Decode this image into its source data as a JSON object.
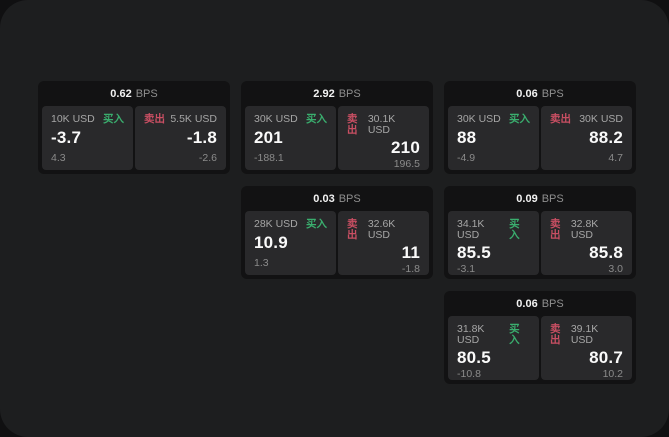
{
  "labels": {
    "bps_unit": "BPS",
    "buy": "买入",
    "sell": "卖出"
  },
  "colors": {
    "surface": "#1d1e1f",
    "outer_background": "#101011",
    "card_background": "#121213",
    "panel_background": "#29292b",
    "buy_green": "#3aae6e",
    "sell_red": "#c94f63",
    "text_primary": "#fafafa",
    "text_muted": "#8b8b8b"
  },
  "cards": [
    {
      "bps": "0.62",
      "buy": {
        "amount": "10K USD",
        "value": "-3.7",
        "sub": "4.3"
      },
      "sell": {
        "amount": "5.5K USD",
        "value": "-1.8",
        "sub": "-2.6"
      }
    },
    {
      "bps": "2.92",
      "buy": {
        "amount": "30K USD",
        "value": "201",
        "sub": "-188.1"
      },
      "sell": {
        "amount": "30.1K USD",
        "value": "210",
        "sub": "196.5"
      }
    },
    {
      "bps": "0.06",
      "buy": {
        "amount": "30K USD",
        "value": "88",
        "sub": "-4.9"
      },
      "sell": {
        "amount": "30K USD",
        "value": "88.2",
        "sub": "4.7"
      }
    },
    {
      "bps": "0.03",
      "buy": {
        "amount": "28K USD",
        "value": "10.9",
        "sub": "1.3"
      },
      "sell": {
        "amount": "32.6K USD",
        "value": "11",
        "sub": "-1.8"
      }
    },
    {
      "bps": "0.09",
      "buy": {
        "amount": "34.1K USD",
        "value": "85.5",
        "sub": "-3.1"
      },
      "sell": {
        "amount": "32.8K USD",
        "value": "85.8",
        "sub": "3.0"
      }
    },
    {
      "bps": "0.06",
      "buy": {
        "amount": "31.8K USD",
        "value": "80.5",
        "sub": "-10.8"
      },
      "sell": {
        "amount": "39.1K USD",
        "value": "80.7",
        "sub": "10.2"
      }
    }
  ]
}
